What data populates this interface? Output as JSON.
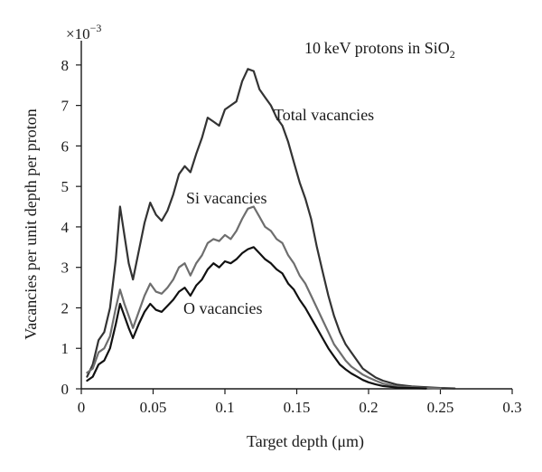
{
  "chart_data": {
    "type": "line",
    "title": "10 keV protons in SiO",
    "title_subscript": "2",
    "xlabel": "Target depth (μm)",
    "ylabel": "Vacancies per unit depth per proton",
    "y_multiplier_base": "×10",
    "y_multiplier_exponent": "−3",
    "xlim": [
      0,
      0.3
    ],
    "ylim": [
      0,
      8.6
    ],
    "x_ticks": [
      0,
      0.05,
      0.1,
      0.15,
      0.2,
      0.25,
      0.3
    ],
    "x_tick_labels": [
      "0",
      "0.05",
      "0.1",
      "0.15",
      "0.2",
      "0.25",
      "0.3"
    ],
    "y_ticks": [
      0,
      1,
      2,
      3,
      4,
      5,
      6,
      7,
      8
    ],
    "y_tick_labels": [
      "0",
      "1",
      "2",
      "3",
      "4",
      "5",
      "6",
      "7",
      "8"
    ],
    "grid": false,
    "legend": "none",
    "series": [
      {
        "name": "Total vacancies",
        "color": "#333333",
        "points": [
          [
            0.004,
            0.3
          ],
          [
            0.008,
            0.6
          ],
          [
            0.012,
            1.2
          ],
          [
            0.016,
            1.4
          ],
          [
            0.02,
            2.0
          ],
          [
            0.024,
            3.2
          ],
          [
            0.027,
            4.5
          ],
          [
            0.03,
            3.8
          ],
          [
            0.033,
            3.1
          ],
          [
            0.036,
            2.7
          ],
          [
            0.04,
            3.4
          ],
          [
            0.044,
            4.1
          ],
          [
            0.048,
            4.6
          ],
          [
            0.052,
            4.3
          ],
          [
            0.056,
            4.15
          ],
          [
            0.06,
            4.4
          ],
          [
            0.064,
            4.8
          ],
          [
            0.068,
            5.3
          ],
          [
            0.072,
            5.5
          ],
          [
            0.076,
            5.35
          ],
          [
            0.08,
            5.8
          ],
          [
            0.084,
            6.2
          ],
          [
            0.088,
            6.7
          ],
          [
            0.092,
            6.6
          ],
          [
            0.096,
            6.5
          ],
          [
            0.1,
            6.9
          ],
          [
            0.104,
            7.0
          ],
          [
            0.108,
            7.1
          ],
          [
            0.112,
            7.6
          ],
          [
            0.116,
            7.9
          ],
          [
            0.12,
            7.85
          ],
          [
            0.124,
            7.4
          ],
          [
            0.128,
            7.2
          ],
          [
            0.132,
            7.0
          ],
          [
            0.136,
            6.7
          ],
          [
            0.14,
            6.5
          ],
          [
            0.144,
            6.1
          ],
          [
            0.148,
            5.6
          ],
          [
            0.152,
            5.1
          ],
          [
            0.156,
            4.7
          ],
          [
            0.16,
            4.2
          ],
          [
            0.164,
            3.5
          ],
          [
            0.168,
            2.9
          ],
          [
            0.172,
            2.3
          ],
          [
            0.176,
            1.8
          ],
          [
            0.18,
            1.4
          ],
          [
            0.184,
            1.1
          ],
          [
            0.188,
            0.9
          ],
          [
            0.192,
            0.7
          ],
          [
            0.196,
            0.5
          ],
          [
            0.2,
            0.4
          ],
          [
            0.205,
            0.28
          ],
          [
            0.21,
            0.2
          ],
          [
            0.215,
            0.15
          ],
          [
            0.22,
            0.1
          ],
          [
            0.23,
            0.06
          ],
          [
            0.24,
            0.04
          ],
          [
            0.25,
            0.02
          ],
          [
            0.26,
            0.01
          ]
        ]
      },
      {
        "name": "Si vacancies",
        "color": "#6e6e6e",
        "points": [
          [
            0.004,
            0.4
          ],
          [
            0.008,
            0.5
          ],
          [
            0.012,
            0.9
          ],
          [
            0.016,
            1.0
          ],
          [
            0.02,
            1.3
          ],
          [
            0.024,
            2.0
          ],
          [
            0.027,
            2.45
          ],
          [
            0.03,
            2.1
          ],
          [
            0.033,
            1.8
          ],
          [
            0.036,
            1.5
          ],
          [
            0.04,
            1.9
          ],
          [
            0.044,
            2.3
          ],
          [
            0.048,
            2.6
          ],
          [
            0.052,
            2.4
          ],
          [
            0.056,
            2.35
          ],
          [
            0.06,
            2.5
          ],
          [
            0.064,
            2.7
          ],
          [
            0.068,
            3.0
          ],
          [
            0.072,
            3.1
          ],
          [
            0.076,
            2.8
          ],
          [
            0.08,
            3.1
          ],
          [
            0.084,
            3.3
          ],
          [
            0.088,
            3.6
          ],
          [
            0.092,
            3.7
          ],
          [
            0.096,
            3.65
          ],
          [
            0.1,
            3.8
          ],
          [
            0.104,
            3.7
          ],
          [
            0.108,
            3.9
          ],
          [
            0.112,
            4.2
          ],
          [
            0.116,
            4.45
          ],
          [
            0.12,
            4.5
          ],
          [
            0.124,
            4.25
          ],
          [
            0.128,
            4.0
          ],
          [
            0.132,
            3.9
          ],
          [
            0.136,
            3.7
          ],
          [
            0.14,
            3.6
          ],
          [
            0.144,
            3.3
          ],
          [
            0.148,
            3.1
          ],
          [
            0.152,
            2.8
          ],
          [
            0.156,
            2.6
          ],
          [
            0.16,
            2.3
          ],
          [
            0.164,
            2.0
          ],
          [
            0.168,
            1.7
          ],
          [
            0.172,
            1.4
          ],
          [
            0.176,
            1.1
          ],
          [
            0.18,
            0.9
          ],
          [
            0.184,
            0.7
          ],
          [
            0.188,
            0.55
          ],
          [
            0.192,
            0.45
          ],
          [
            0.196,
            0.35
          ],
          [
            0.2,
            0.28
          ],
          [
            0.205,
            0.2
          ],
          [
            0.21,
            0.13
          ],
          [
            0.215,
            0.09
          ],
          [
            0.22,
            0.06
          ],
          [
            0.23,
            0.04
          ],
          [
            0.24,
            0.02
          ],
          [
            0.25,
            0.01
          ]
        ]
      },
      {
        "name": "O vacancies",
        "color": "#111111",
        "points": [
          [
            0.004,
            0.2
          ],
          [
            0.008,
            0.3
          ],
          [
            0.012,
            0.6
          ],
          [
            0.016,
            0.7
          ],
          [
            0.02,
            1.0
          ],
          [
            0.024,
            1.6
          ],
          [
            0.027,
            2.1
          ],
          [
            0.03,
            1.8
          ],
          [
            0.033,
            1.5
          ],
          [
            0.036,
            1.25
          ],
          [
            0.04,
            1.6
          ],
          [
            0.044,
            1.9
          ],
          [
            0.048,
            2.1
          ],
          [
            0.052,
            1.95
          ],
          [
            0.056,
            1.9
          ],
          [
            0.06,
            2.05
          ],
          [
            0.064,
            2.2
          ],
          [
            0.068,
            2.4
          ],
          [
            0.072,
            2.5
          ],
          [
            0.076,
            2.3
          ],
          [
            0.08,
            2.55
          ],
          [
            0.084,
            2.7
          ],
          [
            0.088,
            2.95
          ],
          [
            0.092,
            3.1
          ],
          [
            0.096,
            3.0
          ],
          [
            0.1,
            3.15
          ],
          [
            0.104,
            3.1
          ],
          [
            0.108,
            3.2
          ],
          [
            0.112,
            3.35
          ],
          [
            0.116,
            3.45
          ],
          [
            0.12,
            3.5
          ],
          [
            0.124,
            3.35
          ],
          [
            0.128,
            3.2
          ],
          [
            0.132,
            3.1
          ],
          [
            0.136,
            2.95
          ],
          [
            0.14,
            2.85
          ],
          [
            0.144,
            2.6
          ],
          [
            0.148,
            2.45
          ],
          [
            0.152,
            2.2
          ],
          [
            0.156,
            2.0
          ],
          [
            0.16,
            1.75
          ],
          [
            0.164,
            1.5
          ],
          [
            0.168,
            1.25
          ],
          [
            0.172,
            1.0
          ],
          [
            0.176,
            0.8
          ],
          [
            0.18,
            0.6
          ],
          [
            0.184,
            0.48
          ],
          [
            0.188,
            0.38
          ],
          [
            0.192,
            0.3
          ],
          [
            0.196,
            0.22
          ],
          [
            0.2,
            0.16
          ],
          [
            0.205,
            0.11
          ],
          [
            0.21,
            0.07
          ],
          [
            0.215,
            0.05
          ],
          [
            0.22,
            0.03
          ],
          [
            0.23,
            0.02
          ],
          [
            0.24,
            0.01
          ]
        ]
      }
    ],
    "annotations": [
      {
        "text": "Total vacancies",
        "series": "Total vacancies"
      },
      {
        "text": "Si vacancies",
        "series": "Si vacancies"
      },
      {
        "text": "O vacancies",
        "series": "O vacancies"
      }
    ]
  }
}
